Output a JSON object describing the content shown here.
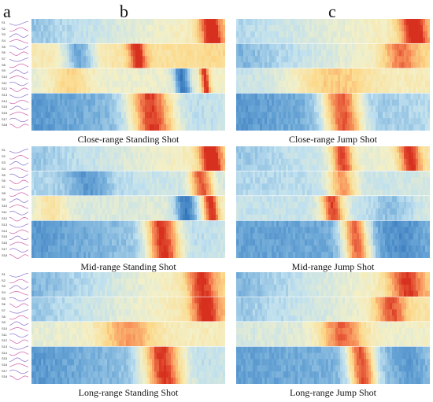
{
  "panel_letters": {
    "a": "a",
    "b": "b",
    "c": "c"
  },
  "sidebar_labels": [
    "S1",
    "S2",
    "S3",
    "S4",
    "S5",
    "S6",
    "S7",
    "S8",
    "S9",
    "S10",
    "S11",
    "S12",
    "S13",
    "S14",
    "S15",
    "S16",
    "S17",
    "S18"
  ],
  "colormap": [
    "#2c6fb8",
    "#6aa6d6",
    "#bfe0ef",
    "#f3f0c8",
    "#fcd98a",
    "#f78e58",
    "#d7301f"
  ],
  "chart_data": [
    {
      "type": "heatmap",
      "title": "Close-range Standing Shot",
      "rows": 18
    },
    {
      "type": "heatmap",
      "title": "Close-range Jump Shot",
      "rows": 18
    },
    {
      "type": "heatmap",
      "title": "Mid-range Standing Shot",
      "rows": 18
    },
    {
      "type": "heatmap",
      "title": "Mid-range Jump Shot",
      "rows": 18
    },
    {
      "type": "heatmap",
      "title": "Long-range Standing Shot",
      "rows": 18
    },
    {
      "type": "heatmap",
      "title": "Long-range Jump Shot",
      "rows": 18
    }
  ]
}
